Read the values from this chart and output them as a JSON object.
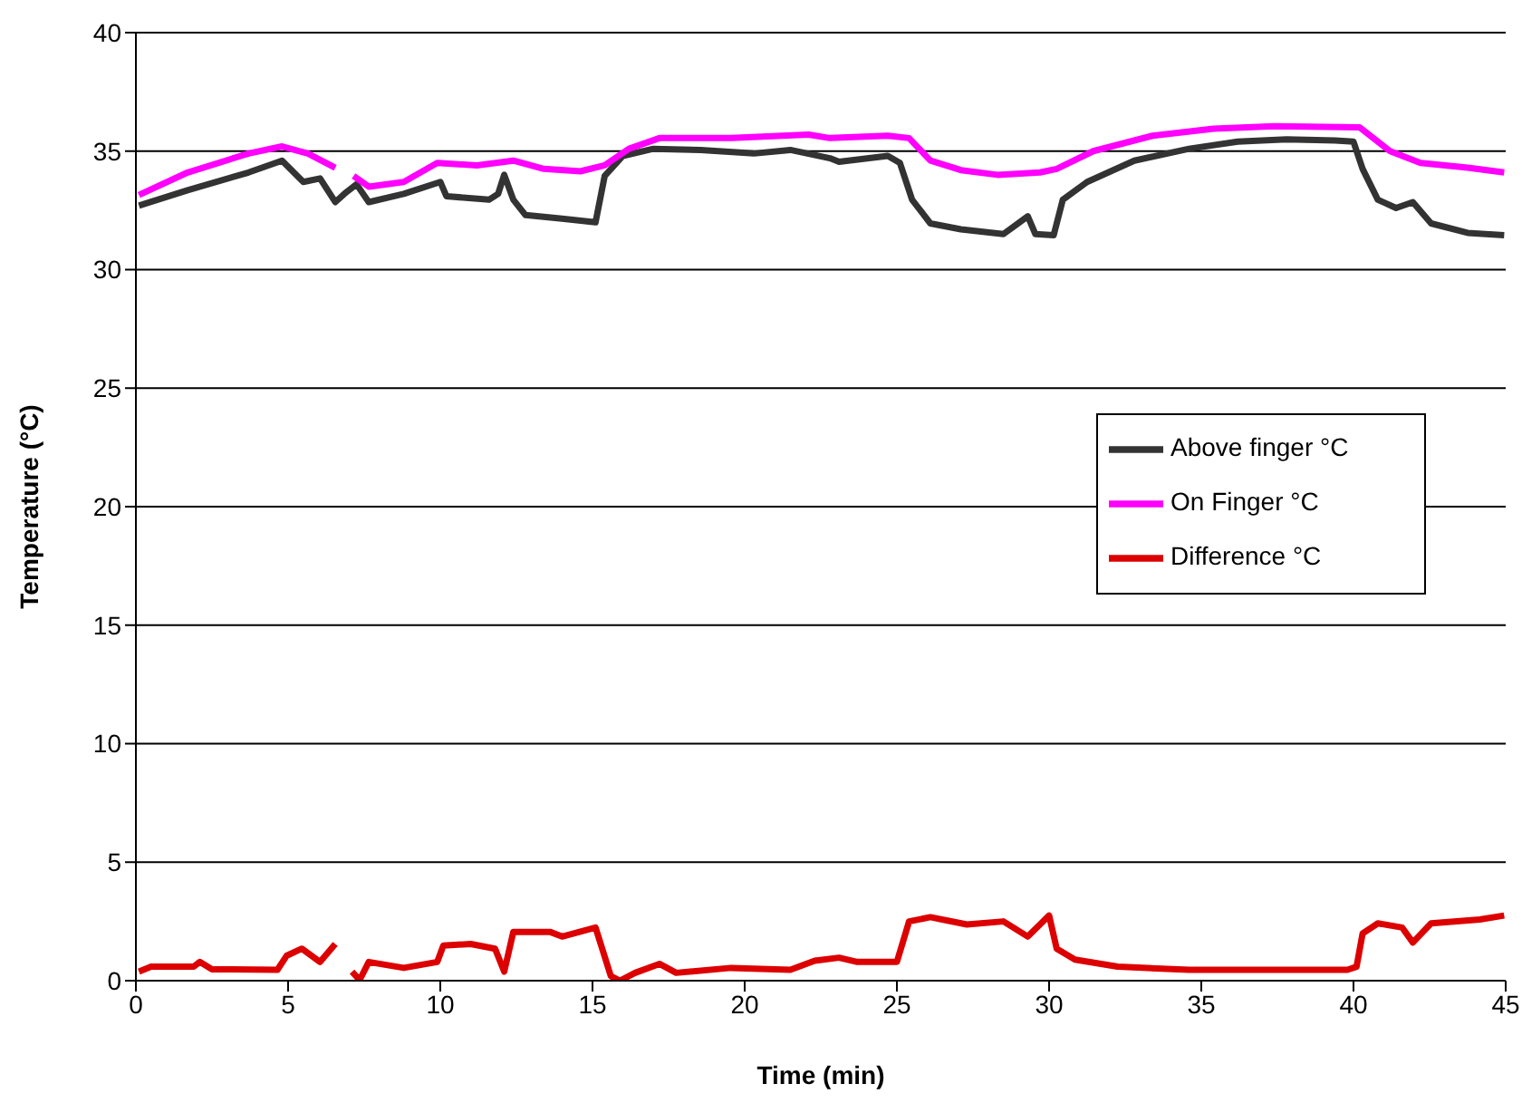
{
  "chart_data": {
    "type": "line",
    "xlabel": "Time (min)",
    "ylabel": "Temperature (°C)",
    "xlim": [
      0,
      45
    ],
    "xticks": [
      0,
      5,
      10,
      15,
      20,
      25,
      30,
      35,
      40,
      45
    ],
    "ylim": [
      0,
      40
    ],
    "yticks": [
      0,
      5,
      10,
      15,
      20,
      25,
      30,
      35,
      40
    ],
    "grid": "y",
    "legend": "right",
    "marker": "none",
    "line_style": "solid",
    "series": [
      {
        "name": "Above finger °C",
        "color": "#333333",
        "x": [
          0.1,
          1.7,
          3.7,
          4.8,
          5.5,
          6.05,
          6.55,
          6.85,
          7.25,
          7.65,
          8.8,
          10.0,
          10.2,
          11.6,
          11.9,
          12.1,
          12.4,
          12.8,
          14.0,
          15.1,
          15.4,
          16.0,
          17.0,
          18.55,
          20.3,
          21.5,
          22.8,
          23.1,
          24.7,
          25.1,
          25.5,
          26.1,
          27.1,
          28.5,
          29.3,
          29.55,
          30.15,
          30.45,
          31.25,
          32.8,
          34.6,
          36.2,
          37.8,
          39.4,
          40.0,
          40.3,
          40.8,
          41.4,
          41.95,
          42.55,
          43.75,
          44.95
        ],
        "values": [
          32.7,
          33.35,
          34.1,
          34.6,
          33.7,
          33.85,
          32.85,
          33.2,
          33.6,
          32.85,
          33.2,
          33.7,
          33.1,
          32.95,
          33.2,
          34.0,
          32.95,
          32.3,
          32.15,
          32.0,
          33.95,
          34.8,
          35.1,
          35.05,
          34.9,
          35.05,
          34.7,
          34.55,
          34.8,
          34.5,
          32.95,
          31.95,
          31.7,
          31.5,
          32.25,
          31.5,
          31.45,
          32.95,
          33.7,
          34.6,
          35.1,
          35.4,
          35.5,
          35.45,
          35.4,
          34.25,
          32.95,
          32.6,
          32.85,
          31.95,
          31.55,
          31.45
        ]
      },
      {
        "name": "On Finger °C",
        "color": "#ff00ff",
        "x": [
          0.1,
          1.7,
          3.7,
          4.8,
          5.65,
          6.55,
          6.85,
          7.15,
          7.65,
          8.8,
          9.9,
          11.2,
          12.4,
          13.4,
          14.6,
          15.4,
          16.2,
          17.2,
          19.55,
          22.1,
          22.8,
          24.7,
          25.4,
          26.1,
          27.1,
          28.3,
          29.7,
          30.25,
          31.45,
          33.4,
          35.4,
          37.4,
          40.2,
          41.2,
          42.2,
          43.75,
          44.95
        ],
        "values": [
          33.15,
          34.1,
          34.9,
          35.2,
          34.9,
          34.3,
          null,
          33.95,
          33.5,
          33.7,
          34.5,
          34.4,
          34.6,
          34.25,
          34.15,
          34.4,
          35.1,
          35.55,
          35.55,
          35.7,
          35.55,
          35.65,
          35.55,
          34.6,
          34.2,
          34.0,
          34.1,
          34.25,
          35.0,
          35.65,
          35.95,
          36.05,
          36.0,
          35.0,
          34.5,
          34.3,
          34.1
        ]
      },
      {
        "name": "Difference °C",
        "color": "#dd0000",
        "x": [
          0.1,
          0.5,
          1.9,
          2.1,
          2.5,
          4.65,
          4.95,
          5.45,
          6.05,
          6.55,
          6.85,
          7.1,
          7.35,
          7.65,
          8.8,
          9.9,
          10.1,
          11.0,
          11.8,
          12.1,
          12.4,
          13.6,
          14.0,
          15.1,
          15.6,
          15.9,
          16.4,
          17.2,
          17.75,
          19.55,
          21.5,
          22.3,
          23.1,
          23.7,
          25.0,
          25.4,
          26.1,
          27.3,
          28.5,
          29.3,
          30.0,
          30.25,
          30.85,
          32.25,
          34.6,
          39.8,
          40.1,
          40.3,
          40.8,
          41.6,
          41.95,
          42.55,
          44.15,
          44.95
        ],
        "values": [
          0.38,
          0.59,
          0.59,
          0.79,
          0.48,
          0.46,
          1.05,
          1.35,
          0.79,
          1.55,
          null,
          0.38,
          0.03,
          0.79,
          0.54,
          0.79,
          1.48,
          1.55,
          1.35,
          0.38,
          2.06,
          2.06,
          1.86,
          2.24,
          0.2,
          0,
          0.33,
          0.71,
          0.33,
          0.54,
          0.46,
          0.84,
          0.97,
          0.79,
          0.79,
          2.5,
          2.68,
          2.37,
          2.5,
          1.86,
          2.75,
          1.35,
          0.89,
          0.59,
          0.46,
          0.46,
          0.59,
          1.99,
          2.42,
          2.24,
          1.61,
          2.42,
          2.58,
          2.75
        ]
      }
    ]
  }
}
